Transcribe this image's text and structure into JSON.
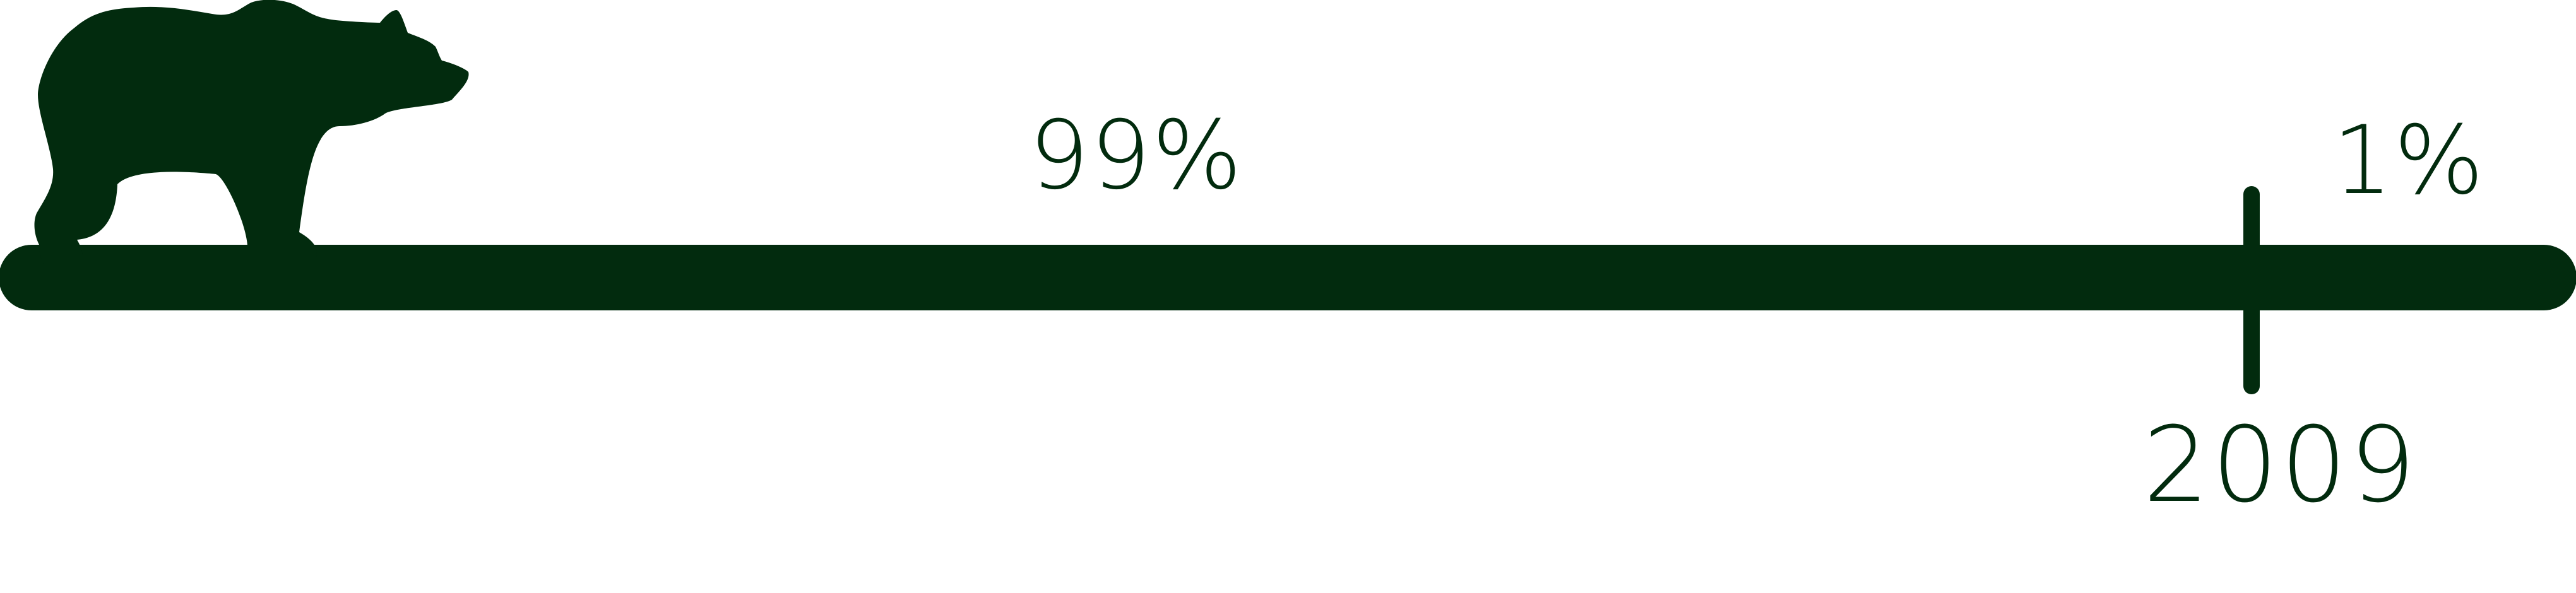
{
  "colors": {
    "ink": "#022b0e",
    "background": "#ffffff"
  },
  "icon": "bear-icon",
  "timeline": {
    "before_label": "99%",
    "after_label": "1%",
    "marker_year": "2009"
  }
}
